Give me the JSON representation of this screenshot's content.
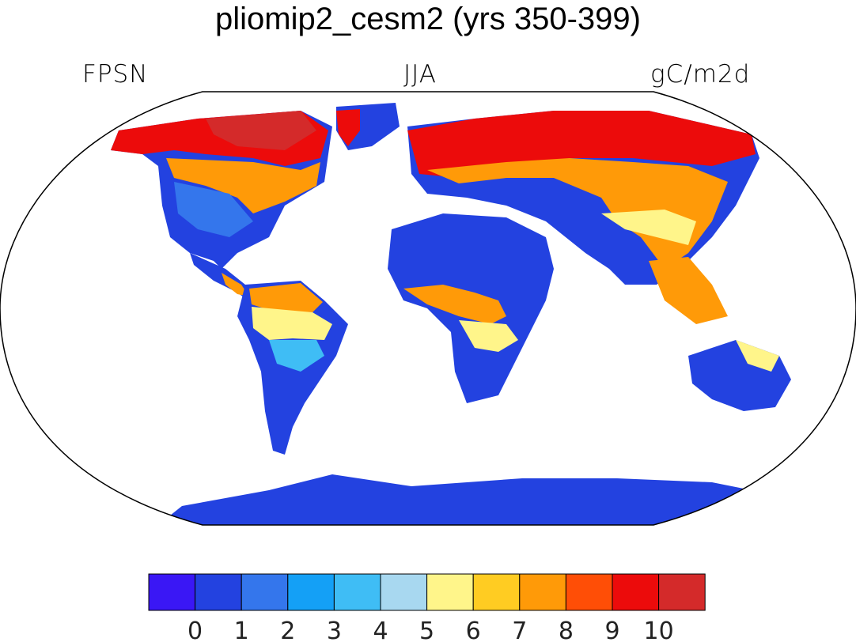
{
  "title": "pliomip2_cesm2 (yrs 350-399)",
  "variable": "FPSN",
  "season": "JJA",
  "units": "gC/m2d",
  "colorbar": {
    "labels": [
      "0",
      "1",
      "2",
      "3",
      "4",
      "5",
      "6",
      "7",
      "8",
      "9",
      "10"
    ],
    "colors": [
      "#3a17f5",
      "#2342e0",
      "#3476ec",
      "#14a0f6",
      "#3fbdf5",
      "#a8d8f0",
      "#fff58a",
      "#ffcc22",
      "#ff9a08",
      "#ff4e06",
      "#ec0b0b",
      "#d42a2a"
    ]
  },
  "palette": {
    "ocean": "#ffffff",
    "land_low": "#2342e0",
    "land_mid": "#3476ec",
    "land_light": "#3fbdf5",
    "land_yellow": "#fff58a",
    "land_orange": "#ff9a08",
    "land_red": "#ec0b0b",
    "land_darkred": "#d42a2a"
  }
}
